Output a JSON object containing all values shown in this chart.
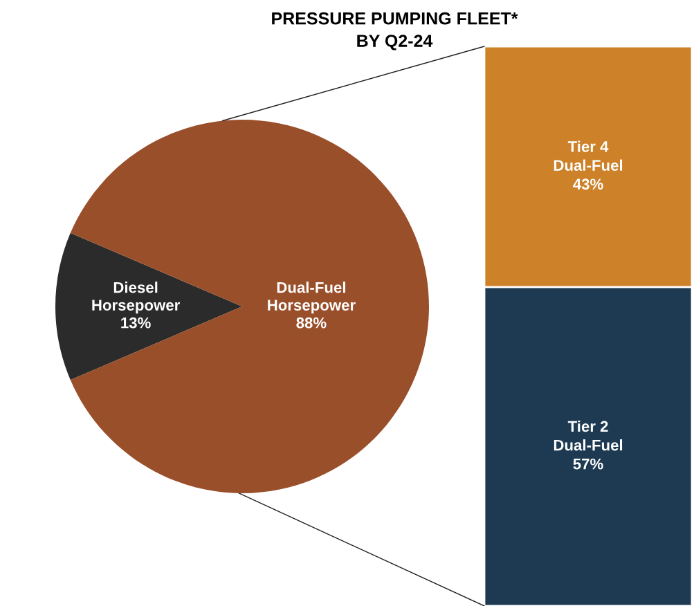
{
  "chart_data": [
    {
      "type": "pie",
      "title": "PRESSURE PUMPING FLEET*\nBY Q2-24",
      "categories": [
        "Diesel\nHorsepower",
        "Dual-Fuel\nHorsepower"
      ],
      "values": [
        13,
        88
      ],
      "colors": [
        "#2b2b2b",
        "#9a4f2b"
      ],
      "value_labels": [
        "13%",
        "88%"
      ]
    },
    {
      "type": "bar",
      "stacked": true,
      "categories": [
        null
      ],
      "tick_labels": false,
      "series": [
        {
          "name": "Tier 2\nDual-Fuel",
          "color": "#1e3a52",
          "values": [
            57
          ],
          "value_labels": [
            "57%"
          ]
        },
        {
          "name": "Tier 4\nDual-Fuel",
          "color": "#cd8128",
          "values": [
            43
          ],
          "value_labels": [
            "43%"
          ]
        }
      ]
    }
  ]
}
